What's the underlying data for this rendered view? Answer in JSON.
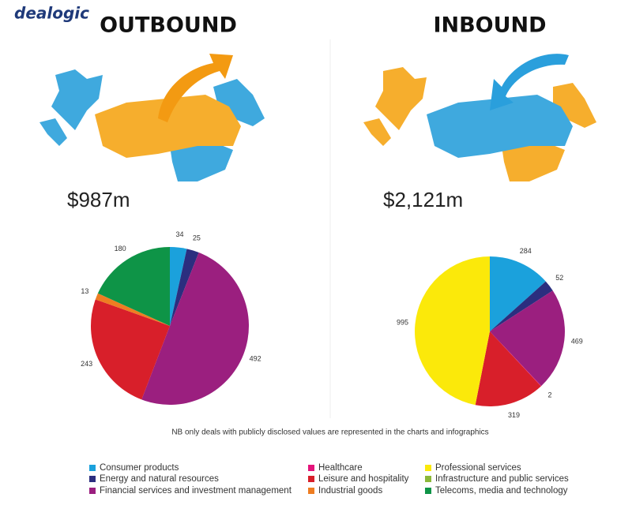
{
  "brand": "dealogic",
  "note": "NB only deals with publicly disclosed values are represented in the charts and infographics",
  "legend": {
    "items": [
      {
        "name": "Consumer products",
        "color": "#1ba1dc"
      },
      {
        "name": "Energy and natural resources",
        "color": "#2b2e7f"
      },
      {
        "name": "Financial services and investment management",
        "color": "#9b1f7f"
      },
      {
        "name": "Healthcare",
        "color": "#e4147b"
      },
      {
        "name": "Leisure and hospitality",
        "color": "#d81f2a"
      },
      {
        "name": "Industrial goods",
        "color": "#ee7d22"
      },
      {
        "name": "Professional services",
        "color": "#fbe90a"
      },
      {
        "name": "Infrastructure and public services",
        "color": "#8cb83a"
      },
      {
        "name": "Telecoms, media and technology",
        "color": "#0e9447"
      }
    ]
  },
  "chart_data": [
    {
      "type": "pie",
      "title": "OUTBOUND",
      "subtitle": "$987m",
      "categories": [
        "Consumer products",
        "Energy and natural resources",
        "Financial services and investment management",
        "Leisure and hospitality",
        "Industrial goods",
        "Telecoms, media and technology"
      ],
      "values": [
        34,
        25,
        492,
        243,
        13,
        180
      ],
      "colors": [
        "#1ba1dc",
        "#2b2e7f",
        "#9b1f7f",
        "#d81f2a",
        "#ee7d22",
        "#0e9447"
      ]
    },
    {
      "type": "pie",
      "title": "INBOUND",
      "subtitle": "$2,121m",
      "categories": [
        "Consumer products",
        "Energy and natural resources",
        "Financial services and investment management",
        "Healthcare",
        "Leisure and hospitality",
        "Professional services"
      ],
      "values": [
        284,
        52,
        469,
        2,
        319,
        995
      ],
      "colors": [
        "#1ba1dc",
        "#2b2e7f",
        "#9b1f7f",
        "#e4147b",
        "#d81f2a",
        "#fbe90a"
      ]
    }
  ]
}
